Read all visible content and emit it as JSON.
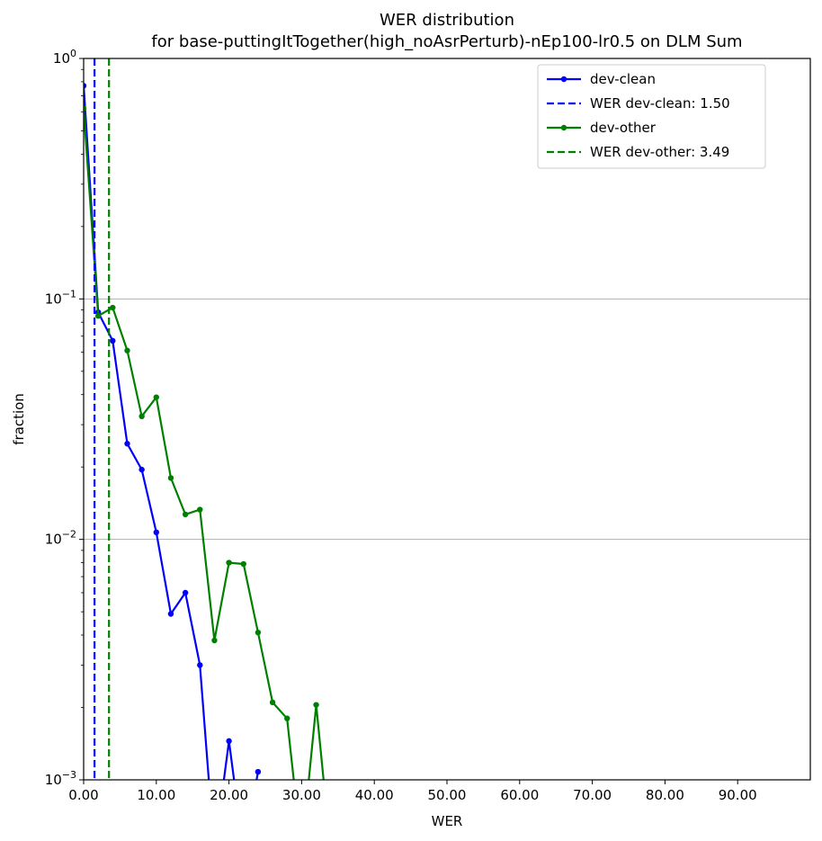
{
  "chart_data": {
    "type": "line",
    "title": "WER distribution",
    "subtitle": "for base-puttingItTogether(high_noAsrPerturb)-nEp100-lr0.5 on DLM Sum",
    "xlabel": "WER",
    "ylabel": "fraction",
    "xscale": "linear",
    "yscale": "log",
    "xlim": [
      0,
      100
    ],
    "ylim": [
      0.001,
      1
    ],
    "grid": "horizontal at y major ticks",
    "legend_position": "top-right",
    "x_tick_labels": [
      "0.00",
      "10.00",
      "20.00",
      "30.00",
      "40.00",
      "50.00",
      "60.00",
      "70.00",
      "80.00",
      "90.00"
    ],
    "y_tick_labels": [
      {
        "base": "10",
        "exp": "0"
      },
      {
        "base": "10",
        "exp": "−1"
      },
      {
        "base": "10",
        "exp": "−2"
      },
      {
        "base": "10",
        "exp": "−3"
      }
    ],
    "series": [
      {
        "name": "dev-clean",
        "color": "#0000ff",
        "style": "solid-with-markers",
        "x": [
          0,
          2,
          4,
          6,
          8,
          10,
          12,
          14,
          16,
          18,
          20,
          22,
          24
        ],
        "y": [
          0.77,
          0.088,
          0.067,
          0.025,
          0.0195,
          0.0107,
          0.0049,
          0.006,
          0.003,
          0.0005,
          0.00145,
          0.0005,
          0.00108
        ]
      },
      {
        "name": "dev-other",
        "color": "#008000",
        "style": "solid-with-markers",
        "x": [
          0,
          2,
          4,
          6,
          8,
          10,
          12,
          14,
          16,
          18,
          20,
          22,
          24,
          26,
          28,
          30,
          32,
          34
        ],
        "y": [
          0.62,
          0.085,
          0.092,
          0.061,
          0.0325,
          0.039,
          0.018,
          0.0127,
          0.0133,
          0.0038,
          0.008,
          0.0079,
          0.0041,
          0.0021,
          0.0018,
          0.0005,
          0.00205,
          0.0005
        ]
      }
    ],
    "vlines": [
      {
        "name": "WER dev-clean: 1.50",
        "x": 1.5,
        "color": "#0000ff",
        "style": "dashed"
      },
      {
        "name": "WER dev-other: 3.49",
        "x": 3.49,
        "color": "#008000",
        "style": "dashed"
      }
    ],
    "legend": [
      {
        "label": "dev-clean",
        "color": "#0000ff",
        "kind": "line-marker"
      },
      {
        "label": "WER dev-clean: 1.50",
        "color": "#0000ff",
        "kind": "dashed"
      },
      {
        "label": "dev-other",
        "color": "#008000",
        "kind": "line-marker"
      },
      {
        "label": "WER dev-other: 3.49",
        "color": "#008000",
        "kind": "dashed"
      }
    ]
  }
}
